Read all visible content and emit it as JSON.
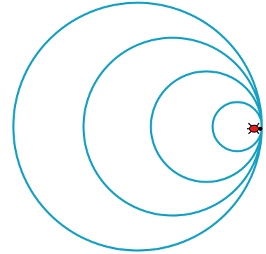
{
  "drawing": {
    "circle_count": 4,
    "tangent_point": "right-middle",
    "colors": {
      "stroke": "#15a1c6",
      "background": "#ffffff",
      "turtle_body": "#e02020",
      "turtle_outline": "#000000"
    },
    "icons": [
      "turtle-icon"
    ]
  }
}
